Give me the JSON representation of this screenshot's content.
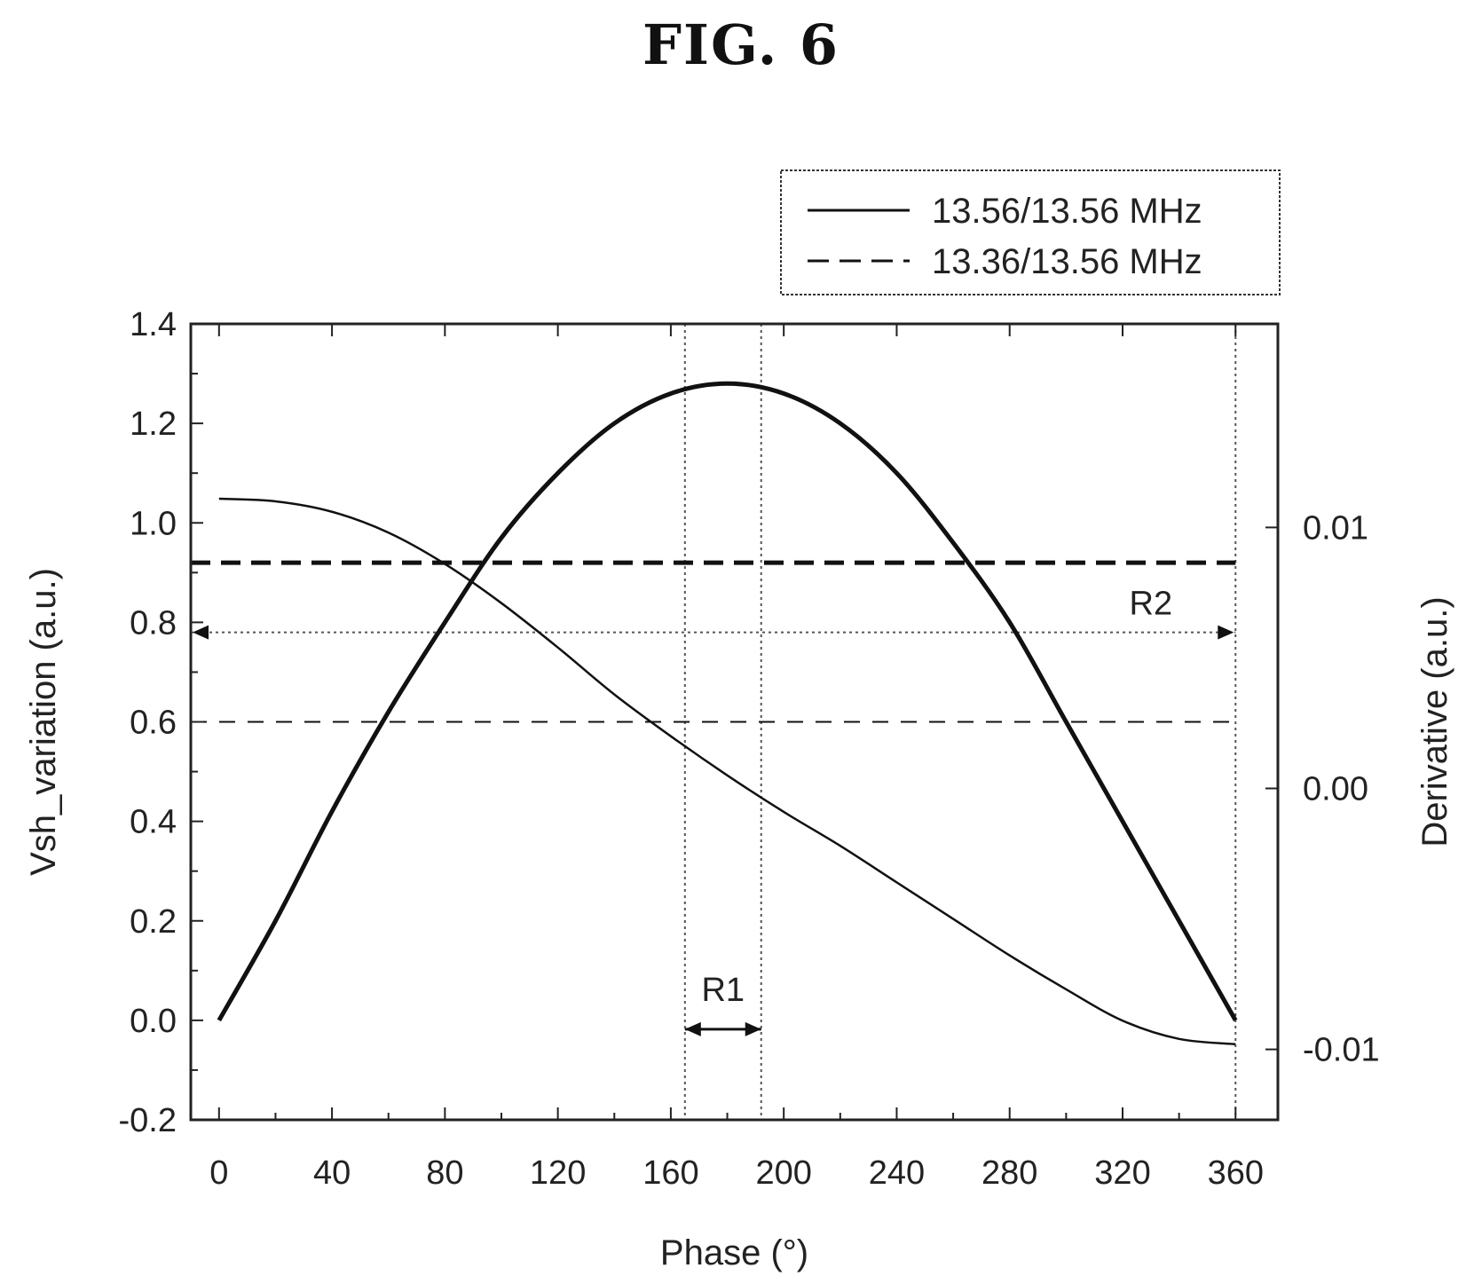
{
  "figure": {
    "title": "FIG. 6"
  },
  "chart_data": {
    "type": "line",
    "xlabel": "Phase (°)",
    "ylabel": "Vsh_variation (a.u.)",
    "y2label": "Derivative (a.u.)",
    "xlim": [
      -10,
      375
    ],
    "ylim": [
      -0.2,
      1.4
    ],
    "y2lim": [
      -0.0127,
      0.0178
    ],
    "xticks": [
      0,
      40,
      80,
      120,
      160,
      200,
      240,
      280,
      320,
      360
    ],
    "xtick_labels": [
      "0",
      "40",
      "80",
      "120",
      "160",
      "200",
      "240",
      "280",
      "320",
      "360"
    ],
    "yticks": [
      -0.2,
      0.0,
      0.2,
      0.4,
      0.6,
      0.8,
      1.0,
      1.2,
      1.4
    ],
    "ytick_labels": [
      "-0.2",
      "0.0",
      "0.2",
      "0.4",
      "0.6",
      "0.8",
      "1.0",
      "1.2",
      "1.4"
    ],
    "y2ticks": [
      -0.01,
      0.0,
      0.01
    ],
    "y2tick_labels": [
      "-0.01",
      "0.00",
      "0.01"
    ],
    "legend": {
      "placement": "top-right, above plot",
      "entries": [
        {
          "label": "13.56/13.56 MHz",
          "style": "solid"
        },
        {
          "label": "13.36/13.56 MHz",
          "style": "dashed"
        }
      ]
    },
    "series": [
      {
        "name": "13.56/13.56 MHz",
        "axis": "left",
        "style": "solid",
        "x": [
          0,
          20,
          40,
          60,
          80,
          100,
          120,
          140,
          160,
          180,
          200,
          220,
          240,
          260,
          280,
          300,
          320,
          340,
          360
        ],
        "y": [
          0.0,
          0.2,
          0.42,
          0.62,
          0.8,
          0.97,
          1.1,
          1.2,
          1.26,
          1.28,
          1.26,
          1.2,
          1.1,
          0.96,
          0.8,
          0.6,
          0.4,
          0.2,
          0.0
        ]
      },
      {
        "name": "13.56/13.56 MHz",
        "axis": "right",
        "style": "solid",
        "x": [
          0,
          20,
          40,
          60,
          80,
          100,
          120,
          140,
          160,
          180,
          200,
          220,
          240,
          260,
          280,
          300,
          320,
          340,
          360
        ],
        "y": [
          0.0111,
          0.011,
          0.0106,
          0.0098,
          0.0086,
          0.0071,
          0.0054,
          0.0036,
          0.002,
          0.0005,
          -0.0009,
          -0.0022,
          -0.0036,
          -0.005,
          -0.0064,
          -0.0077,
          -0.0089,
          -0.0096,
          -0.0098
        ]
      },
      {
        "name": "13.36/13.56 MHz",
        "axis": "left",
        "style": "dashed",
        "x": [
          -10,
          360
        ],
        "y": [
          0.92,
          0.92
        ]
      },
      {
        "name": "13.36/13.56 MHz",
        "axis": "left",
        "style": "dashed",
        "x": [
          -10,
          360
        ],
        "y": [
          0.6,
          0.6
        ]
      }
    ],
    "reference_lines": {
      "vertical_x": [
        -10,
        165,
        192,
        360
      ],
      "horizontal_y": [
        0.78
      ]
    },
    "annotations": [
      {
        "text": "R1",
        "x_range": [
          165,
          192
        ],
        "y": 0.0
      },
      {
        "text": "R2",
        "x_range": [
          -10,
          360
        ],
        "y": 0.78
      }
    ]
  }
}
